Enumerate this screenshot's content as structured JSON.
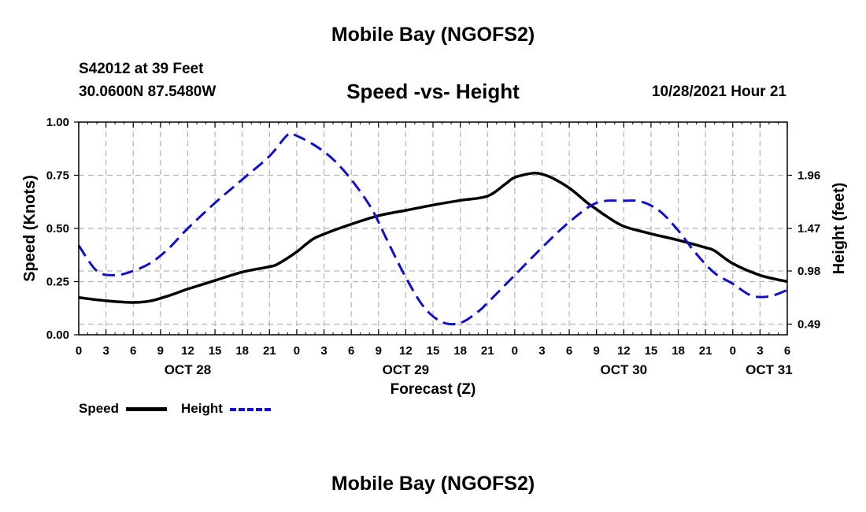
{
  "header": {
    "title": "Mobile Bay (NGOFS2)",
    "station": "S42012 at 39 Feet",
    "coords": "30.0600N  87.5480W",
    "subtitle": "Speed -vs- Height",
    "timestamp": "10/28/2021 Hour 21"
  },
  "footer": {
    "title": "Mobile Bay (NGOFS2)"
  },
  "legend": {
    "speed_label": "Speed",
    "height_label": "Height"
  },
  "colors": {
    "speed": "#000000",
    "height": "#1010cc",
    "grid": "#b4b4b4"
  },
  "chart_data": {
    "type": "line",
    "xlabel": "Forecast (Z)",
    "ylabel_left": "Speed (Knots)",
    "ylabel_right": "Height (feet)",
    "x_unit": "hours since OCT 28 00Z",
    "xlim": [
      0,
      78
    ],
    "ylim_left": [
      0,
      1.0
    ],
    "left_ticks": [
      "0.00",
      "0.25",
      "0.50",
      "0.75",
      "1.00"
    ],
    "right_ticks": [
      "0.49",
      "0.98",
      "1.47",
      "1.96"
    ],
    "right_tick_speed_equiv": [
      0.05,
      0.3,
      0.5,
      0.75
    ],
    "x_tick_labels": [
      "0",
      "3",
      "6",
      "9",
      "12",
      "15",
      "18",
      "21",
      "0",
      "3",
      "6",
      "9",
      "12",
      "15",
      "18",
      "21",
      "0",
      "3",
      "6",
      "9",
      "12",
      "15",
      "18",
      "21",
      "0",
      "3",
      "6"
    ],
    "date_labels": [
      {
        "label": "OCT 28",
        "hour": 12
      },
      {
        "label": "OCT 29",
        "hour": 36
      },
      {
        "label": "OCT 30",
        "hour": 60
      },
      {
        "label": "OCT 31",
        "hour": 76
      }
    ],
    "grid": true,
    "series": [
      {
        "name": "Speed",
        "style": "solid",
        "x": [
          0,
          3,
          6,
          8,
          10,
          12,
          15,
          18,
          21,
          22,
          24,
          25,
          26,
          28,
          30,
          33,
          36,
          39,
          42,
          45,
          47,
          48,
          50,
          51,
          52,
          54,
          56,
          57,
          58,
          60,
          63,
          66,
          69,
          70,
          72,
          75,
          78
        ],
        "values": [
          0.175,
          0.16,
          0.152,
          0.16,
          0.185,
          0.215,
          0.255,
          0.295,
          0.32,
          0.335,
          0.39,
          0.425,
          0.455,
          0.49,
          0.52,
          0.56,
          0.585,
          0.61,
          0.632,
          0.652,
          0.71,
          0.74,
          0.76,
          0.755,
          0.74,
          0.69,
          0.62,
          0.59,
          0.56,
          0.51,
          0.475,
          0.445,
          0.41,
          0.395,
          0.335,
          0.28,
          0.25
        ]
      },
      {
        "name": "Height",
        "style": "dashed",
        "x": [
          0,
          2,
          4,
          6,
          8,
          10,
          12,
          15,
          18,
          21,
          23,
          24,
          26,
          28,
          30,
          32,
          33,
          34,
          36,
          38,
          40,
          42,
          44,
          45,
          48,
          51,
          54,
          57,
          60,
          62,
          64,
          66,
          68,
          70,
          72,
          74,
          76,
          78
        ],
        "values": [
          0.42,
          0.3,
          0.28,
          0.3,
          0.34,
          0.41,
          0.5,
          0.62,
          0.73,
          0.84,
          0.94,
          0.935,
          0.89,
          0.825,
          0.73,
          0.61,
          0.53,
          0.44,
          0.27,
          0.13,
          0.06,
          0.055,
          0.11,
          0.15,
          0.28,
          0.41,
          0.53,
          0.62,
          0.63,
          0.625,
          0.58,
          0.49,
          0.38,
          0.29,
          0.24,
          0.185,
          0.18,
          0.21
        ]
      }
    ]
  }
}
